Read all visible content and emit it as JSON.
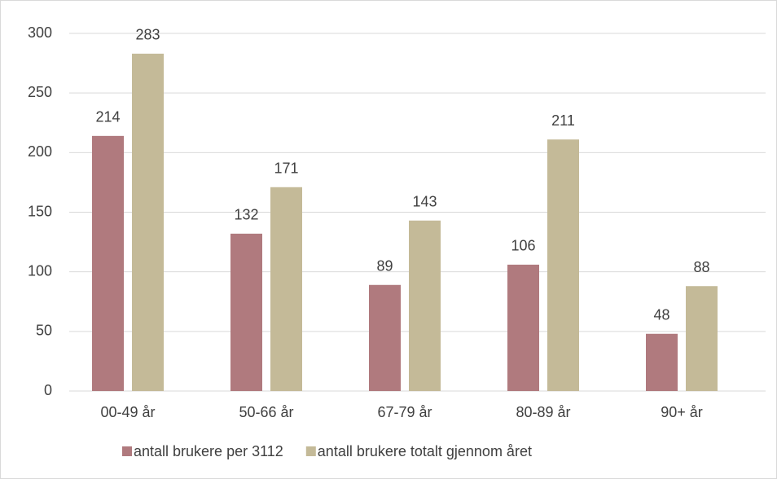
{
  "chart_data": {
    "type": "bar",
    "categories": [
      "00-49 år",
      "50-66 år",
      "67-79 år",
      "80-89 år",
      "90+ år"
    ],
    "series": [
      {
        "name": "antall brukere per 3112",
        "color": "#b07a7e",
        "values": [
          214,
          132,
          89,
          106,
          48
        ]
      },
      {
        "name": "antall brukere totalt gjennom året",
        "color": "#c4ba98",
        "values": [
          283,
          171,
          143,
          211,
          88
        ]
      }
    ],
    "ylim": [
      0,
      300
    ],
    "yticks": [
      0,
      50,
      100,
      150,
      200,
      250,
      300
    ],
    "grid": true,
    "legend": "bottom"
  }
}
